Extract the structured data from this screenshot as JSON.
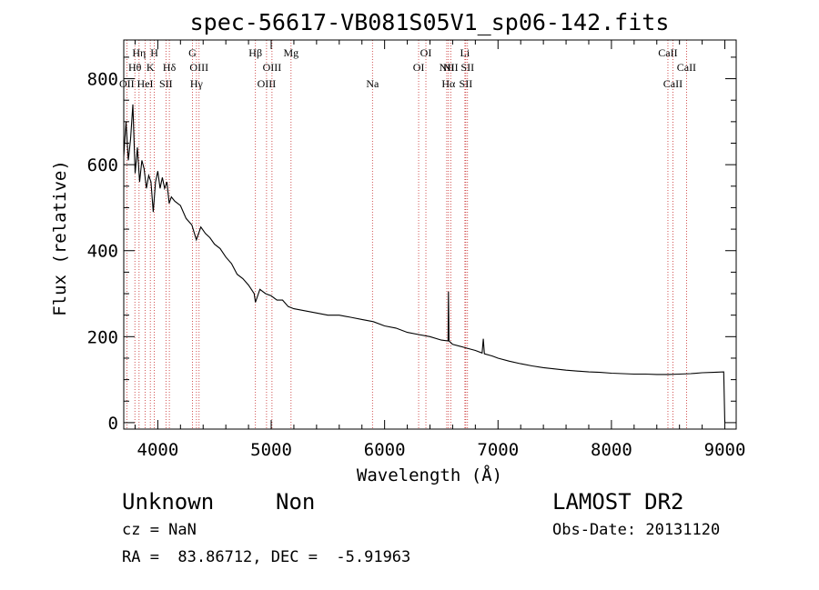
{
  "chart_data": {
    "type": "line",
    "title": "spec-56617-VB081S05V1_sp06-142.fits",
    "xlabel": "Wavelength (Å)",
    "ylabel": "Flux (relative)",
    "xlim": [
      3700,
      9100
    ],
    "ylim": [
      -15,
      890
    ],
    "x_ticks": [
      4000,
      5000,
      6000,
      7000,
      8000,
      9000
    ],
    "y_ticks": [
      0,
      200,
      400,
      600,
      800
    ],
    "grid": false,
    "series": [
      {
        "color": "#000000",
        "points": [
          [
            3700,
            620
          ],
          [
            3720,
            700
          ],
          [
            3740,
            610
          ],
          [
            3760,
            660
          ],
          [
            3780,
            740
          ],
          [
            3800,
            580
          ],
          [
            3820,
            640
          ],
          [
            3840,
            560
          ],
          [
            3860,
            610
          ],
          [
            3880,
            590
          ],
          [
            3900,
            545
          ],
          [
            3920,
            575
          ],
          [
            3940,
            560
          ],
          [
            3960,
            490
          ],
          [
            3980,
            560
          ],
          [
            4000,
            585
          ],
          [
            4020,
            545
          ],
          [
            4040,
            570
          ],
          [
            4060,
            545
          ],
          [
            4080,
            560
          ],
          [
            4100,
            510
          ],
          [
            4120,
            525
          ],
          [
            4150,
            515
          ],
          [
            4200,
            505
          ],
          [
            4250,
            475
          ],
          [
            4300,
            460
          ],
          [
            4340,
            425
          ],
          [
            4380,
            455
          ],
          [
            4420,
            440
          ],
          [
            4460,
            430
          ],
          [
            4500,
            415
          ],
          [
            4550,
            405
          ],
          [
            4600,
            385
          ],
          [
            4650,
            370
          ],
          [
            4700,
            345
          ],
          [
            4750,
            335
          ],
          [
            4800,
            320
          ],
          [
            4850,
            300
          ],
          [
            4861,
            280
          ],
          [
            4900,
            310
          ],
          [
            4950,
            300
          ],
          [
            5000,
            295
          ],
          [
            5050,
            285
          ],
          [
            5100,
            285
          ],
          [
            5150,
            270
          ],
          [
            5200,
            265
          ],
          [
            5300,
            260
          ],
          [
            5400,
            255
          ],
          [
            5500,
            250
          ],
          [
            5600,
            250
          ],
          [
            5700,
            245
          ],
          [
            5800,
            240
          ],
          [
            5900,
            235
          ],
          [
            6000,
            225
          ],
          [
            6100,
            220
          ],
          [
            6200,
            210
          ],
          [
            6300,
            205
          ],
          [
            6400,
            200
          ],
          [
            6500,
            192
          ],
          [
            6560,
            190
          ],
          [
            6563,
            305
          ],
          [
            6568,
            190
          ],
          [
            6600,
            182
          ],
          [
            6700,
            175
          ],
          [
            6800,
            168
          ],
          [
            6860,
            162
          ],
          [
            6870,
            195
          ],
          [
            6880,
            160
          ],
          [
            6950,
            155
          ],
          [
            7000,
            150
          ],
          [
            7100,
            143
          ],
          [
            7200,
            137
          ],
          [
            7300,
            132
          ],
          [
            7400,
            128
          ],
          [
            7500,
            125
          ],
          [
            7600,
            122
          ],
          [
            7700,
            120
          ],
          [
            7800,
            118
          ],
          [
            7900,
            117
          ],
          [
            8000,
            115
          ],
          [
            8100,
            114
          ],
          [
            8200,
            113
          ],
          [
            8300,
            113
          ],
          [
            8400,
            112
          ],
          [
            8500,
            112
          ],
          [
            8600,
            113
          ],
          [
            8700,
            114
          ],
          [
            8800,
            116
          ],
          [
            8900,
            117
          ],
          [
            8990,
            118
          ],
          [
            9000,
            0
          ]
        ]
      }
    ],
    "lines": [
      {
        "x": 3727,
        "label": "OII",
        "row": 3
      },
      {
        "x": 3798,
        "label": "Hθ",
        "row": 2
      },
      {
        "x": 3835,
        "label": "Hη",
        "row": 1
      },
      {
        "x": 3889,
        "label": "HeI",
        "row": 3
      },
      {
        "x": 3934,
        "label": "K",
        "row": 2
      },
      {
        "x": 3969,
        "label": "H",
        "row": 1
      },
      {
        "x": 4072,
        "label": "SII",
        "row": 3
      },
      {
        "x": 4102,
        "label": "Hδ",
        "row": 2
      },
      {
        "x": 4305,
        "label": "G",
        "row": 1
      },
      {
        "x": 4341,
        "label": "Hγ",
        "row": 3
      },
      {
        "x": 4364,
        "label": "OIII",
        "row": 2
      },
      {
        "x": 4861,
        "label": "Hβ",
        "row": 1
      },
      {
        "x": 4959,
        "label": "OIII",
        "row": 3
      },
      {
        "x": 5007,
        "label": "OIII",
        "row": 2
      },
      {
        "x": 5175,
        "label": "Mg",
        "row": 1
      },
      {
        "x": 5893,
        "label": "Na",
        "row": 3
      },
      {
        "x": 6300,
        "label": "OI",
        "row": 2
      },
      {
        "x": 6364,
        "label": "OI",
        "row": 1
      },
      {
        "x": 6548,
        "label": "NII",
        "row": 2
      },
      {
        "x": 6563,
        "label": "Hα",
        "row": 3
      },
      {
        "x": 6583,
        "label": "NII",
        "row": 2
      },
      {
        "x": 6708,
        "label": "Li",
        "row": 1
      },
      {
        "x": 6716,
        "label": "SII",
        "row": 3
      },
      {
        "x": 6731,
        "label": "SII",
        "row": 2
      },
      {
        "x": 8498,
        "label": "CaII",
        "row": 1
      },
      {
        "x": 8542,
        "label": "CaII",
        "row": 3
      },
      {
        "x": 8662,
        "label": "CaII",
        "row": 2
      }
    ]
  },
  "info": {
    "classification": "Unknown",
    "subclass": "Non",
    "survey": "LAMOST DR2",
    "cz": "cz = NaN",
    "obs_date": "Obs-Date: 20131120",
    "coords": "RA =  83.86712, DEC =  -5.91963"
  }
}
